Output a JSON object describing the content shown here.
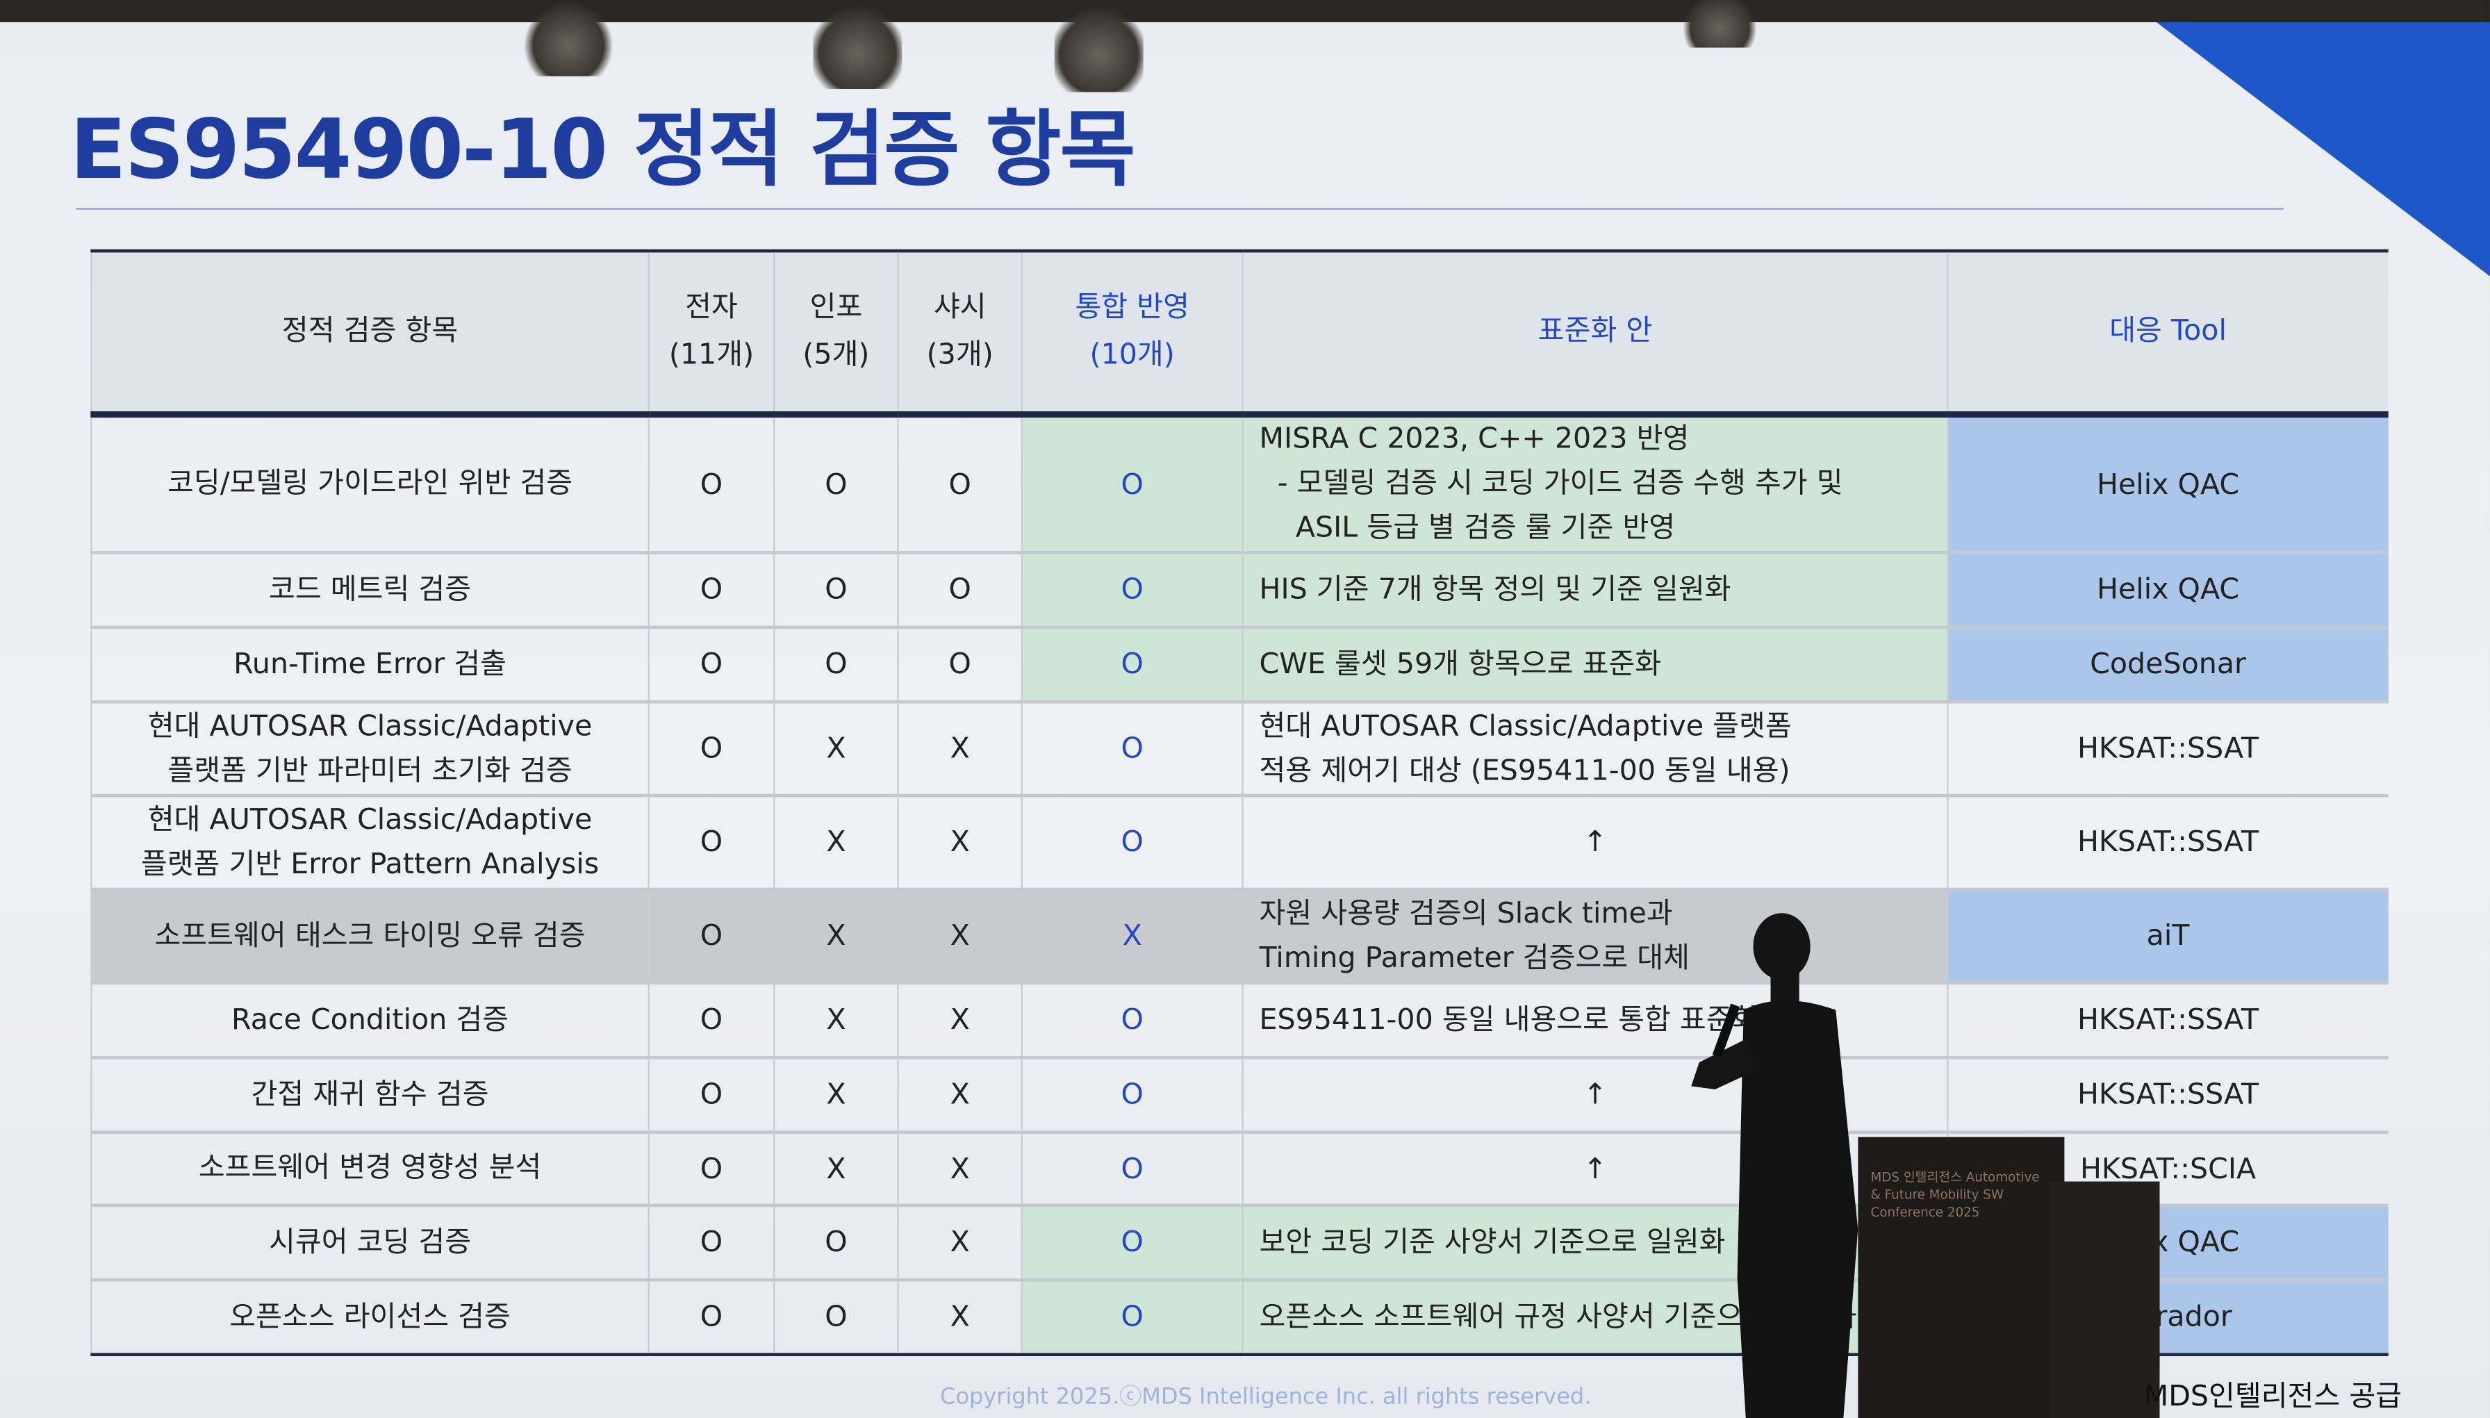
{
  "slide": {
    "title": "ES95490-10 정적 검증 항목",
    "copyright": "Copyright 2025.ⓒMDS Intelligence Inc. all rights reserved.",
    "supply_note": "MDS인텔리전스 공급",
    "podium_text": "MDS 인텔리전스 Automotive & Future Mobility SW Conference 2025"
  },
  "colors": {
    "title": "#1f3d9e",
    "integration": "#cfe6d6",
    "tool": "#aac6ea",
    "excluded_row": "#c9cacf"
  },
  "table": {
    "headers": [
      {
        "line1": "정적 검증 항목",
        "line2": ""
      },
      {
        "line1": "전자",
        "line2": "(11개)"
      },
      {
        "line1": "인포",
        "line2": "(5개)"
      },
      {
        "line1": "샤시",
        "line2": "(3개)"
      },
      {
        "line1": "통합 반영",
        "line2": "(10개)"
      },
      {
        "line1": "표준화 안",
        "line2": ""
      },
      {
        "line1": "대응 Tool",
        "line2": ""
      }
    ],
    "rows": [
      {
        "item": [
          "코딩/모델링 가이드라인 위반 검증"
        ],
        "e": "O",
        "i": "O",
        "c": "O",
        "m": "O",
        "std": [
          "MISRA C 2023, C++ 2023 반영",
          "  - 모델링 검증 시 코딩 가이드 검증 수행 추가 및",
          "    ASIL 등급 별 검증 룰 기준 반영"
        ],
        "tool": "Helix QAC",
        "hl": true
      },
      {
        "item": [
          "코드 메트릭 검증"
        ],
        "e": "O",
        "i": "O",
        "c": "O",
        "m": "O",
        "std": [
          "HIS 기준 7개 항목 정의 및 기준 일원화"
        ],
        "tool": "Helix QAC",
        "hl": true
      },
      {
        "item": [
          "Run-Time Error 검출"
        ],
        "e": "O",
        "i": "O",
        "c": "O",
        "m": "O",
        "std": [
          "CWE 룰셋 59개 항목으로 표준화"
        ],
        "tool": "CodeSonar",
        "hl": true
      },
      {
        "item": [
          "현대 AUTOSAR Classic/Adaptive",
          "플랫폼 기반 파라미터 초기화 검증"
        ],
        "e": "O",
        "i": "X",
        "c": "X",
        "m": "O",
        "std": [
          "현대 AUTOSAR Classic/Adaptive 플랫폼",
          "적용 제어기 대상 (ES95411-00 동일 내용)"
        ],
        "tool": "HKSAT::SSAT",
        "hl": false
      },
      {
        "item": [
          "현대 AUTOSAR Classic/Adaptive",
          "플랫폼 기반 Error Pattern Analysis"
        ],
        "e": "O",
        "i": "X",
        "c": "X",
        "m": "O",
        "std": [
          "↑"
        ],
        "tool": "HKSAT::SSAT",
        "hl": false
      },
      {
        "item": [
          "소프트웨어 태스크 타이밍 오류 검증"
        ],
        "e": "O",
        "i": "X",
        "c": "X",
        "m": "X",
        "std": [
          "자원 사용량 검증의 Slack time과",
          "Timing Parameter 검증으로 대체"
        ],
        "tool": "aiT",
        "hl": false,
        "gray": true
      },
      {
        "item": [
          "Race Condition 검증"
        ],
        "e": "O",
        "i": "X",
        "c": "X",
        "m": "O",
        "std": [
          "ES95411-00 동일 내용으로 통합 표준화"
        ],
        "tool": "HKSAT::SSAT",
        "hl": false
      },
      {
        "item": [
          "간접 재귀 함수 검증"
        ],
        "e": "O",
        "i": "X",
        "c": "X",
        "m": "O",
        "std": [
          "↑"
        ],
        "tool": "HKSAT::SSAT",
        "hl": false
      },
      {
        "item": [
          "소프트웨어 변경 영향성 분석"
        ],
        "e": "O",
        "i": "X",
        "c": "X",
        "m": "O",
        "std": [
          "↑"
        ],
        "tool": "HKSAT::SCIA",
        "hl": false
      },
      {
        "item": [
          "시큐어 코딩 검증"
        ],
        "e": "O",
        "i": "O",
        "c": "X",
        "m": "O",
        "std": [
          "보안 코딩 기준 사양서 기준으로 일원화"
        ],
        "tool": "Helix QAC",
        "hl": true
      },
      {
        "item": [
          "오픈소스 라이선스 검증"
        ],
        "e": "O",
        "i": "O",
        "c": "X",
        "m": "O",
        "std": [
          "오픈소스 소프트웨어 규정 사양서 기준으로 일원화"
        ],
        "tool": "Labrador",
        "hl": true
      }
    ]
  }
}
